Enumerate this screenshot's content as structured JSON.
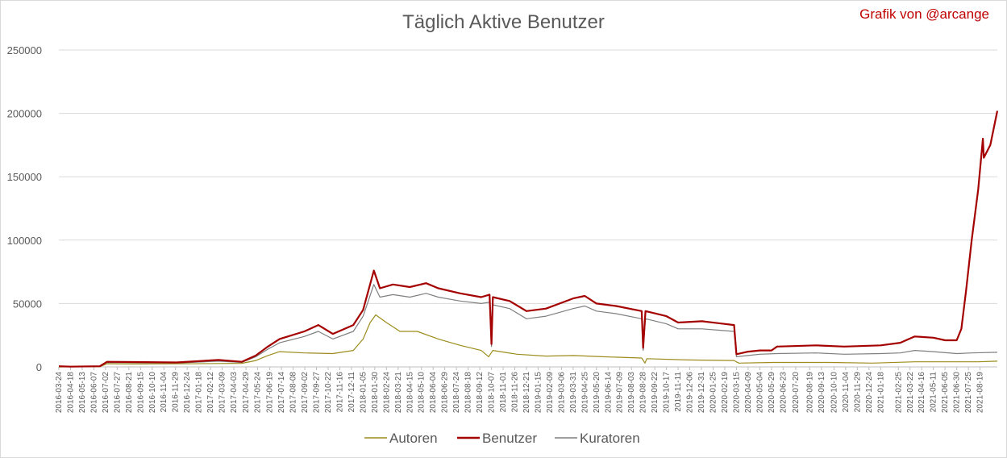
{
  "chart_data": {
    "type": "line",
    "title": "Täglich Aktive Benutzer",
    "credit": "Grafik von @arcange",
    "xlabel": "",
    "ylabel": "",
    "ylim": [
      0,
      250000
    ],
    "yticks": [
      "0",
      "50000",
      "100000",
      "150000",
      "200000",
      "250000"
    ],
    "grid": true,
    "legend_position": "bottom",
    "x_tick_labels": [
      "2016-03-24",
      "2016-04-18",
      "2016-05-13",
      "2016-06-07",
      "2016-07-02",
      "2016-07-27",
      "2016-08-21",
      "2016-09-15",
      "2016-10-10",
      "2016-11-04",
      "2016-11-29",
      "2016-12-24",
      "2017-01-18",
      "2017-02-12",
      "2017-03-09",
      "2017-04-03",
      "2017-04-29",
      "2017-05-24",
      "2017-06-19",
      "2017-07-14",
      "2017-08-08",
      "2017-09-02",
      "2017-09-27",
      "2017-10-22",
      "2017-11-16",
      "2017-12-11",
      "2018-01-05",
      "2018-01-30",
      "2018-02-24",
      "2018-03-21",
      "2018-04-15",
      "2018-05-10",
      "2018-06-04",
      "2018-06-29",
      "2018-07-24",
      "2018-08-18",
      "2018-09-12",
      "2018-10-07",
      "2018-11-01",
      "2018-11-26",
      "2018-12-21",
      "2019-01-15",
      "2019-02-09",
      "2019-03-06",
      "2019-03-31",
      "2019-04-25",
      "2019-05-20",
      "2019-06-14",
      "2019-07-09",
      "2019-08-03",
      "2019-08-28",
      "2019-09-22",
      "2019-10-17",
      "2019-11-11",
      "2019-12-06",
      "2019-12-31",
      "2020-01-25",
      "2020-02-19",
      "2020-03-15",
      "2020-04-09",
      "2020-05-04",
      "2020-05-29",
      "2020-06-23",
      "2020-07-20",
      "2020-08-19",
      "2020-09-13",
      "2020-10-10",
      "2020-11-04",
      "2020-11-29",
      "2020-12-24",
      "2021-01-18",
      "2021-02-25",
      "2021-03-22",
      "2021-04-16",
      "2021-05-11",
      "2021-06-05",
      "2021-06-30",
      "2021-07-25",
      "2021-08-19"
    ],
    "x_range": [
      "2016-03-24",
      "2021-09-25"
    ],
    "series": [
      {
        "name": "Autoren",
        "color": "#9c8c1c",
        "points": [
          [
            "2016-03-24",
            0
          ],
          [
            "2016-06-20",
            200
          ],
          [
            "2016-07-05",
            2500
          ],
          [
            "2016-09-01",
            2300
          ],
          [
            "2016-12-01",
            2400
          ],
          [
            "2017-03-01",
            2700
          ],
          [
            "2017-04-20",
            2800
          ],
          [
            "2017-05-20",
            5000
          ],
          [
            "2017-06-15",
            9000
          ],
          [
            "2017-07-10",
            12000
          ],
          [
            "2017-09-01",
            11000
          ],
          [
            "2017-11-01",
            10500
          ],
          [
            "2017-12-15",
            13000
          ],
          [
            "2018-01-05",
            22000
          ],
          [
            "2018-01-20",
            35000
          ],
          [
            "2018-02-01",
            41000
          ],
          [
            "2018-02-24",
            35000
          ],
          [
            "2018-03-25",
            28000
          ],
          [
            "2018-05-01",
            28000
          ],
          [
            "2018-06-15",
            22000
          ],
          [
            "2018-08-01",
            17000
          ],
          [
            "2018-09-15",
            13000
          ],
          [
            "2018-10-01",
            8000
          ],
          [
            "2018-10-10",
            13000
          ],
          [
            "2018-12-01",
            10000
          ],
          [
            "2019-02-01",
            8500
          ],
          [
            "2019-04-01",
            9000
          ],
          [
            "2019-06-01",
            8000
          ],
          [
            "2019-08-25",
            7000
          ],
          [
            "2019-09-01",
            3000
          ],
          [
            "2019-09-05",
            6500
          ],
          [
            "2019-12-01",
            5500
          ],
          [
            "2020-03-10",
            5000
          ],
          [
            "2020-03-20",
            3000
          ],
          [
            "2020-06-01",
            3500
          ],
          [
            "2020-10-01",
            3500
          ],
          [
            "2021-01-01",
            3000
          ],
          [
            "2021-04-01",
            4000
          ],
          [
            "2021-06-30",
            4000
          ],
          [
            "2021-08-15",
            4000
          ],
          [
            "2021-09-25",
            4500
          ]
        ]
      },
      {
        "name": "Benutzer",
        "color": "#a40000",
        "points": [
          [
            "2016-03-24",
            500
          ],
          [
            "2016-04-18",
            200
          ],
          [
            "2016-06-20",
            500
          ],
          [
            "2016-07-05",
            4000
          ],
          [
            "2016-09-01",
            3800
          ],
          [
            "2016-12-01",
            3500
          ],
          [
            "2017-03-01",
            5500
          ],
          [
            "2017-04-20",
            4000
          ],
          [
            "2017-05-20",
            9000
          ],
          [
            "2017-06-15",
            16000
          ],
          [
            "2017-07-10",
            22000
          ],
          [
            "2017-09-01",
            28000
          ],
          [
            "2017-10-01",
            33000
          ],
          [
            "2017-11-01",
            26000
          ],
          [
            "2017-12-15",
            33000
          ],
          [
            "2018-01-05",
            45000
          ],
          [
            "2018-01-28",
            76000
          ],
          [
            "2018-02-10",
            62000
          ],
          [
            "2018-03-10",
            65000
          ],
          [
            "2018-04-15",
            63000
          ],
          [
            "2018-05-20",
            66000
          ],
          [
            "2018-06-15",
            62000
          ],
          [
            "2018-08-01",
            58000
          ],
          [
            "2018-09-15",
            55000
          ],
          [
            "2018-10-03",
            57000
          ],
          [
            "2018-10-07",
            18000
          ],
          [
            "2018-10-10",
            55000
          ],
          [
            "2018-11-15",
            52000
          ],
          [
            "2018-12-21",
            44000
          ],
          [
            "2019-02-01",
            46000
          ],
          [
            "2019-03-31",
            54000
          ],
          [
            "2019-04-25",
            56000
          ],
          [
            "2019-05-20",
            50000
          ],
          [
            "2019-07-01",
            48000
          ],
          [
            "2019-08-25",
            44000
          ],
          [
            "2019-08-28",
            15000
          ],
          [
            "2019-09-02",
            44000
          ],
          [
            "2019-10-17",
            40000
          ],
          [
            "2019-11-11",
            35000
          ],
          [
            "2020-01-01",
            36000
          ],
          [
            "2020-03-10",
            33000
          ],
          [
            "2020-03-15",
            10000
          ],
          [
            "2020-04-09",
            12000
          ],
          [
            "2020-05-04",
            13000
          ],
          [
            "2020-05-29",
            13000
          ],
          [
            "2020-06-10",
            16000
          ],
          [
            "2020-09-01",
            17000
          ],
          [
            "2020-11-01",
            16000
          ],
          [
            "2021-01-18",
            17000
          ],
          [
            "2021-03-01",
            19000
          ],
          [
            "2021-04-01",
            24000
          ],
          [
            "2021-05-11",
            23000
          ],
          [
            "2021-06-05",
            21000
          ],
          [
            "2021-06-30",
            21000
          ],
          [
            "2021-07-10",
            30000
          ],
          [
            "2021-07-20",
            60000
          ],
          [
            "2021-08-01",
            100000
          ],
          [
            "2021-08-15",
            140000
          ],
          [
            "2021-08-25",
            180000
          ],
          [
            "2021-08-27",
            165000
          ],
          [
            "2021-09-10",
            175000
          ],
          [
            "2021-09-25",
            202000
          ]
        ]
      },
      {
        "name": "Kuratoren",
        "color": "#7f7f7f",
        "points": [
          [
            "2016-03-24",
            0
          ],
          [
            "2016-06-20",
            400
          ],
          [
            "2016-07-05",
            3500
          ],
          [
            "2016-09-01",
            3300
          ],
          [
            "2016-12-01",
            3000
          ],
          [
            "2017-03-01",
            4500
          ],
          [
            "2017-04-20",
            3500
          ],
          [
            "2017-05-20",
            8000
          ],
          [
            "2017-06-15",
            14000
          ],
          [
            "2017-07-10",
            19000
          ],
          [
            "2017-09-01",
            24000
          ],
          [
            "2017-10-01",
            28000
          ],
          [
            "2017-11-01",
            22000
          ],
          [
            "2017-12-15",
            28000
          ],
          [
            "2018-01-05",
            40000
          ],
          [
            "2018-01-28",
            65000
          ],
          [
            "2018-02-10",
            55000
          ],
          [
            "2018-03-10",
            57000
          ],
          [
            "2018-04-15",
            55000
          ],
          [
            "2018-05-20",
            58000
          ],
          [
            "2018-06-15",
            55000
          ],
          [
            "2018-08-01",
            52000
          ],
          [
            "2018-09-15",
            50000
          ],
          [
            "2018-10-03",
            51000
          ],
          [
            "2018-10-07",
            16000
          ],
          [
            "2018-10-10",
            49000
          ],
          [
            "2018-11-15",
            46000
          ],
          [
            "2018-12-21",
            38000
          ],
          [
            "2019-02-01",
            40000
          ],
          [
            "2019-03-31",
            46000
          ],
          [
            "2019-04-25",
            48000
          ],
          [
            "2019-05-20",
            44000
          ],
          [
            "2019-07-01",
            42000
          ],
          [
            "2019-08-25",
            38000
          ],
          [
            "2019-08-28",
            13000
          ],
          [
            "2019-09-02",
            38000
          ],
          [
            "2019-10-17",
            34000
          ],
          [
            "2019-11-11",
            30000
          ],
          [
            "2020-01-01",
            30000
          ],
          [
            "2020-03-10",
            28000
          ],
          [
            "2020-03-15",
            8000
          ],
          [
            "2020-04-09",
            9000
          ],
          [
            "2020-05-04",
            10000
          ],
          [
            "2020-06-10",
            10500
          ],
          [
            "2020-09-01",
            11000
          ],
          [
            "2020-11-01",
            10000
          ],
          [
            "2021-01-18",
            10500
          ],
          [
            "2021-03-01",
            11000
          ],
          [
            "2021-04-01",
            13000
          ],
          [
            "2021-05-11",
            12000
          ],
          [
            "2021-06-30",
            10500
          ],
          [
            "2021-08-01",
            11000
          ],
          [
            "2021-09-25",
            11500
          ]
        ]
      }
    ]
  }
}
